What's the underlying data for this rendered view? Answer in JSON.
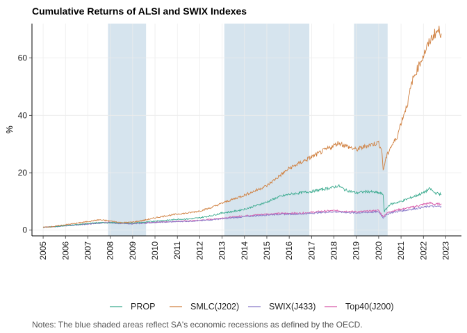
{
  "chart_data": {
    "type": "line",
    "title": "Cumulative Returns of ALSI and SWIX Indexes",
    "xlabel": "",
    "ylabel": "%",
    "caption": "Notes: The blue shaded areas reflect SA's economic recessions as defined by the OECD.",
    "xlim": [
      2004.5,
      2023.7
    ],
    "ylim": [
      -2,
      72
    ],
    "x_ticks": [
      "2005",
      "2006",
      "2007",
      "2008",
      "2009",
      "2010",
      "2011",
      "2012",
      "2013",
      "2014",
      "2015",
      "2016",
      "2017",
      "2018",
      "2019",
      "2020",
      "2021",
      "2022",
      "2023"
    ],
    "y_ticks": [
      0,
      20,
      40,
      60
    ],
    "grid": true,
    "legend_position": "bottom",
    "recessions": [
      [
        2007.9,
        2009.6
      ],
      [
        2013.1,
        2016.9
      ],
      [
        2018.9,
        2020.4
      ]
    ],
    "series": [
      {
        "name": "PROP",
        "color": "#3aaa8e",
        "x": [
          2005.0,
          2005.5,
          2006.0,
          2006.5,
          2007.0,
          2007.5,
          2008.0,
          2008.5,
          2009.0,
          2009.5,
          2010.0,
          2010.5,
          2011.0,
          2011.5,
          2012.0,
          2012.5,
          2013.0,
          2013.5,
          2014.0,
          2014.5,
          2015.0,
          2015.5,
          2016.0,
          2016.5,
          2017.0,
          2017.5,
          2018.0,
          2018.2,
          2018.5,
          2019.0,
          2019.5,
          2020.0,
          2020.2,
          2020.25,
          2020.5,
          2021.0,
          2021.5,
          2022.0,
          2022.3,
          2022.5,
          2022.8
        ],
        "y": [
          1.0,
          1.2,
          1.6,
          1.9,
          2.3,
          2.6,
          2.6,
          2.5,
          2.5,
          2.7,
          3.2,
          3.4,
          3.8,
          3.9,
          4.3,
          5.0,
          6.0,
          6.5,
          7.3,
          8.5,
          9.8,
          11.5,
          12.5,
          13.0,
          13.5,
          14.2,
          15.0,
          15.5,
          14.0,
          13.0,
          13.5,
          13.0,
          12.5,
          6.5,
          9.0,
          10.0,
          11.5,
          13.0,
          14.5,
          13.0,
          12.5
        ]
      },
      {
        "name": "SMLC(J202)",
        "color": "#d08040",
        "x": [
          2005.0,
          2005.5,
          2006.0,
          2006.5,
          2007.0,
          2007.5,
          2008.0,
          2008.5,
          2009.0,
          2009.5,
          2010.0,
          2010.5,
          2011.0,
          2011.5,
          2012.0,
          2012.5,
          2013.0,
          2013.5,
          2014.0,
          2014.5,
          2015.0,
          2015.5,
          2016.0,
          2016.5,
          2017.0,
          2017.5,
          2018.0,
          2018.2,
          2018.5,
          2019.0,
          2019.5,
          2020.0,
          2020.15,
          2020.2,
          2020.3,
          2020.5,
          2020.8,
          2021.0,
          2021.3,
          2021.5,
          2021.8,
          2022.0,
          2022.3,
          2022.5,
          2022.7,
          2022.8
        ],
        "y": [
          1.0,
          1.3,
          1.9,
          2.4,
          3.0,
          3.6,
          3.2,
          2.6,
          2.8,
          3.4,
          4.3,
          5.0,
          5.6,
          6.0,
          6.7,
          7.8,
          9.4,
          10.8,
          12.2,
          13.8,
          15.5,
          18.5,
          21.5,
          23.5,
          25.5,
          27.5,
          29.5,
          30.5,
          29.5,
          28.0,
          29.5,
          30.5,
          27.5,
          20.5,
          24.5,
          28.5,
          32.0,
          37.5,
          44.5,
          52.0,
          57.5,
          61.0,
          66.0,
          68.5,
          69.5,
          68.5
        ]
      },
      {
        "name": "SWIX(J433)",
        "color": "#8878c8",
        "x": [
          2005.0,
          2005.5,
          2006.0,
          2006.5,
          2007.0,
          2007.5,
          2008.0,
          2008.5,
          2009.0,
          2009.5,
          2010.0,
          2010.5,
          2011.0,
          2011.5,
          2012.0,
          2012.5,
          2013.0,
          2013.5,
          2014.0,
          2014.5,
          2015.0,
          2015.5,
          2016.0,
          2016.5,
          2017.0,
          2017.5,
          2018.0,
          2018.5,
          2019.0,
          2019.5,
          2020.0,
          2020.2,
          2020.3,
          2020.5,
          2021.0,
          2021.5,
          2022.0,
          2022.3,
          2022.5,
          2022.8
        ],
        "y": [
          1.0,
          1.2,
          1.5,
          1.8,
          2.1,
          2.4,
          2.6,
          2.3,
          2.2,
          2.4,
          2.7,
          2.8,
          3.0,
          3.1,
          3.3,
          3.6,
          4.0,
          4.3,
          4.7,
          5.0,
          5.3,
          5.5,
          5.6,
          5.6,
          5.9,
          6.2,
          6.4,
          6.2,
          6.0,
          6.2,
          6.4,
          4.3,
          5.0,
          6.0,
          6.7,
          7.3,
          8.0,
          8.4,
          8.2,
          8.3
        ]
      },
      {
        "name": "Top40(J200)",
        "color": "#d858a8",
        "x": [
          2005.0,
          2005.5,
          2006.0,
          2006.5,
          2007.0,
          2007.5,
          2008.0,
          2008.5,
          2009.0,
          2009.5,
          2010.0,
          2010.5,
          2011.0,
          2011.5,
          2012.0,
          2012.5,
          2013.0,
          2013.5,
          2014.0,
          2014.5,
          2015.0,
          2015.5,
          2016.0,
          2016.5,
          2017.0,
          2017.5,
          2018.0,
          2018.5,
          2019.0,
          2019.5,
          2020.0,
          2020.2,
          2020.3,
          2020.5,
          2021.0,
          2021.5,
          2022.0,
          2022.3,
          2022.5,
          2022.8
        ],
        "y": [
          1.0,
          1.3,
          1.6,
          1.9,
          2.2,
          2.5,
          2.8,
          2.4,
          2.3,
          2.5,
          2.8,
          2.9,
          3.1,
          3.2,
          3.4,
          3.8,
          4.2,
          4.6,
          5.0,
          5.3,
          5.6,
          5.8,
          5.9,
          5.9,
          6.2,
          6.6,
          6.8,
          6.6,
          6.4,
          6.6,
          6.9,
          4.7,
          5.5,
          6.5,
          7.3,
          8.0,
          9.0,
          9.5,
          9.0,
          9.2
        ]
      }
    ]
  }
}
